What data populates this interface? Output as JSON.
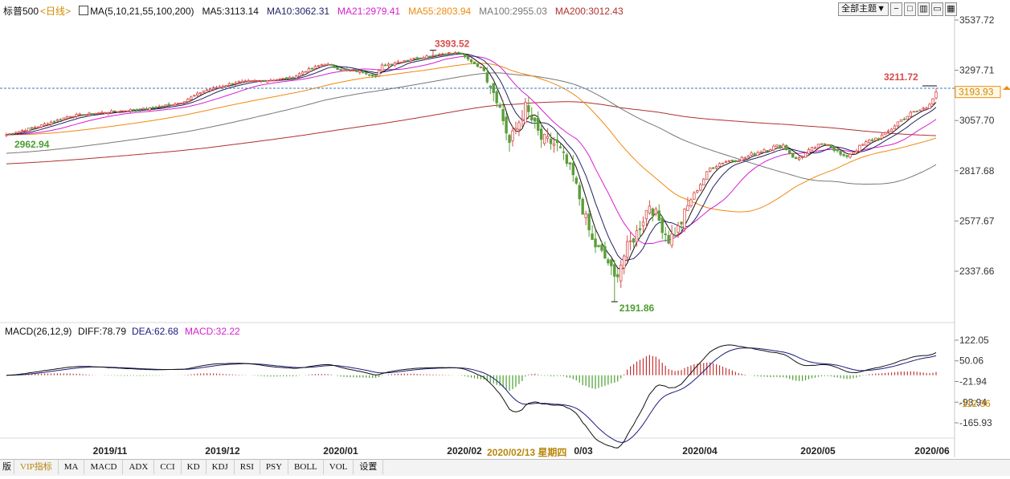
{
  "header": {
    "symbol": "标普500",
    "period": "<日线>",
    "ma_params": "MA(5,10,21,55,100,200)",
    "ma5": "MA5:3113.14",
    "ma10": "MA10:3062.31",
    "ma21": "MA21:2979.41",
    "ma55": "MA55:2803.94",
    "ma100": "MA100:2955.03",
    "ma200": "MA200:3012.43"
  },
  "toolbar": {
    "theme_label": "全部主题▼"
  },
  "colors": {
    "up": "#d94a4a",
    "down": "#5a9e3a",
    "ma5": "#111111",
    "ma10": "#222266",
    "ma21": "#d61fd0",
    "ma55": "#ef8a10",
    "ma100": "#777777",
    "ma200": "#b03030",
    "dif": "#111111",
    "dea": "#1a1a80",
    "macd_pos": "#c23333",
    "macd_neg": "#4a9e2f"
  },
  "price_labels": {
    "high": "3393.52",
    "low": "2191.86",
    "start": "2962.94",
    "last_high": "3211.72",
    "current": "3193.93"
  },
  "macd_header": {
    "params": "MACD(26,12,9)",
    "diff": "DIFF:78.79",
    "dea": "DEA:62.68",
    "macd": "MACD:32.22"
  },
  "bottom_tabs": [
    "版",
    "VIP指标",
    "MA",
    "MACD",
    "ADX",
    "CCI",
    "KD",
    "KDJ",
    "RSI",
    "PSY",
    "BOLL",
    "VOL",
    "设置"
  ],
  "hover_date": "2020/02/13 星期四",
  "chart_data": [
    {
      "type": "candlestick",
      "title": "标普500 <日线>",
      "y_ticks": [
        "3537.72",
        "3297.71",
        "3057.70",
        "2817.68",
        "2577.67",
        "2337.66"
      ],
      "y_tick_values": [
        3537.72,
        3297.71,
        3057.7,
        2817.68,
        2577.67,
        2337.66
      ],
      "x_labels": [
        "2019/11",
        "2019/12",
        "2020/01",
        "2020/02",
        "0/03",
        "2020/04",
        "2020/05",
        "2020/06"
      ],
      "grid": false,
      "reference_line": 3211.72,
      "anchors": [
        [
          0,
          2990
        ],
        [
          10,
          3030
        ],
        [
          20,
          3080
        ],
        [
          30,
          3095
        ],
        [
          40,
          3110
        ],
        [
          45,
          3115
        ],
        [
          55,
          3145
        ],
        [
          62,
          3200
        ],
        [
          72,
          3240
        ],
        [
          82,
          3250
        ],
        [
          90,
          3262
        ],
        [
          93,
          3290
        ],
        [
          100,
          3330
        ],
        [
          105,
          3300
        ],
        [
          112,
          3290
        ],
        [
          116,
          3270
        ],
        [
          118,
          3320
        ],
        [
          125,
          3345
        ],
        [
          132,
          3365
        ],
        [
          138,
          3380
        ],
        [
          142,
          3380
        ],
        [
          144,
          3360
        ],
        [
          150,
          3300
        ],
        [
          154,
          3170
        ],
        [
          158,
          2950
        ],
        [
          163,
          3120
        ],
        [
          168,
          2970
        ],
        [
          173,
          2940
        ],
        [
          178,
          2790
        ],
        [
          184,
          2480
        ],
        [
          189,
          2380
        ],
        [
          191,
          2300
        ],
        [
          195,
          2450
        ],
        [
          198,
          2520
        ],
        [
          202,
          2660
        ],
        [
          205,
          2580
        ],
        [
          208,
          2490
        ],
        [
          211,
          2540
        ],
        [
          215,
          2680
        ],
        [
          221,
          2830
        ],
        [
          225,
          2860
        ],
        [
          232,
          2880
        ],
        [
          238,
          2920
        ],
        [
          244,
          2940
        ],
        [
          248,
          2870
        ],
        [
          254,
          2930
        ],
        [
          258,
          2950
        ],
        [
          263,
          2880
        ],
        [
          267,
          2920
        ],
        [
          271,
          2960
        ],
        [
          276,
          2990
        ],
        [
          280,
          3050
        ],
        [
          284,
          3090
        ],
        [
          289,
          3120
        ],
        [
          292,
          3193.93
        ]
      ],
      "ohlc": {
        "high_day": 134,
        "high_value": 3393.52,
        "low_day": 191,
        "low_value": 2191.86,
        "start_value": 2962.94,
        "last_value": 3193.93,
        "last_high": 3211.72
      },
      "moving_averages": [
        {
          "name": "MA5",
          "value": 3113.14
        },
        {
          "name": "MA10",
          "value": 3062.31
        },
        {
          "name": "MA21",
          "value": 2979.41
        },
        {
          "name": "MA55",
          "value": 2803.94
        },
        {
          "name": "MA100",
          "value": 2955.03
        },
        {
          "name": "MA200",
          "value": 3012.43
        }
      ]
    },
    {
      "type": "bar",
      "title": "MACD(26,12,9)",
      "y_ticks": [
        "122.05",
        "50.06",
        "-21.94",
        "-93.94",
        "-165.93"
      ],
      "y_tick_values": [
        122.05,
        50.06,
        -21.94,
        -93.94,
        -165.93
      ],
      "current_label": "-112.36",
      "series": [
        {
          "name": "DIFF",
          "last": 78.79
        },
        {
          "name": "DEA",
          "last": 62.68
        },
        {
          "name": "MACD",
          "last": 32.22
        }
      ]
    }
  ]
}
